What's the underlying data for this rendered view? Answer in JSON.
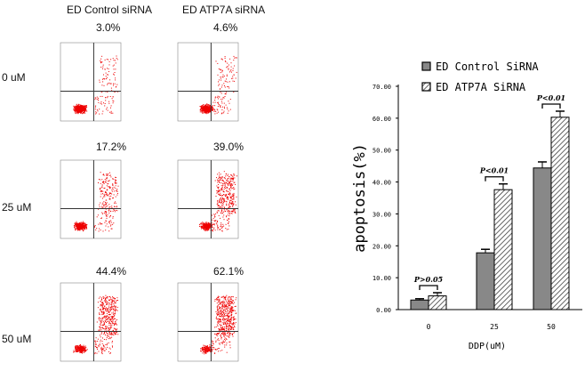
{
  "flow": {
    "col_headers": [
      "ED Control siRNA",
      "ED ATP7A siRNA"
    ],
    "row_labels": [
      "0 uM",
      "25  uM",
      "50 uM"
    ],
    "percentages": [
      [
        "3.0%",
        "4.6%"
      ],
      [
        "17.2%",
        "39.0%"
      ],
      [
        "44.4%",
        "62.1%"
      ]
    ]
  },
  "chart_data": {
    "type": "bar",
    "categories": [
      "0",
      "25",
      "50"
    ],
    "series": [
      {
        "name": "ED Control SiRNA",
        "values": [
          3.0,
          17.8,
          44.4
        ],
        "errors": [
          0.4,
          1.1,
          1.9
        ],
        "color": "#888888",
        "pattern": "solid"
      },
      {
        "name": "ED ATP7A    SiRNA",
        "values": [
          4.3,
          37.6,
          60.3
        ],
        "errors": [
          1.0,
          1.8,
          1.9
        ],
        "color": "#ffffff",
        "pattern": "hatched"
      }
    ],
    "annotations": [
      "P>0.05",
      "P<0.01",
      "P<0.01"
    ],
    "xlabel": "DDP(uM)",
    "ylabel": "apoptosis(%)",
    "ylim": [
      0,
      70
    ],
    "yticks": [
      "0.00",
      "10.00",
      "20.00",
      "30.00",
      "40.00",
      "50.00",
      "60.00",
      "70.00"
    ],
    "legend_position": "top"
  }
}
